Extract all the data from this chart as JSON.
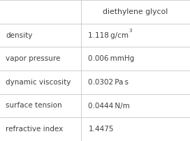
{
  "header_val": "diethylene glycol",
  "rows": [
    {
      "property": "density",
      "value": "1.118 g/cm",
      "superscript": "3"
    },
    {
      "property": "vapor pressure",
      "value": "0.006 mmHg",
      "superscript": ""
    },
    {
      "property": "dynamic viscosity",
      "value": "0.0302 Pa s",
      "superscript": ""
    },
    {
      "property": "surface tension",
      "value": "0.0444 N/m",
      "superscript": ""
    },
    {
      "property": "refractive index",
      "value": "1.4475",
      "superscript": ""
    }
  ],
  "bg_color": "#ffffff",
  "line_color": "#c8c8c8",
  "text_color": "#404040",
  "font_size": 7.5,
  "header_font_size": 7.8,
  "col_split": 0.425
}
